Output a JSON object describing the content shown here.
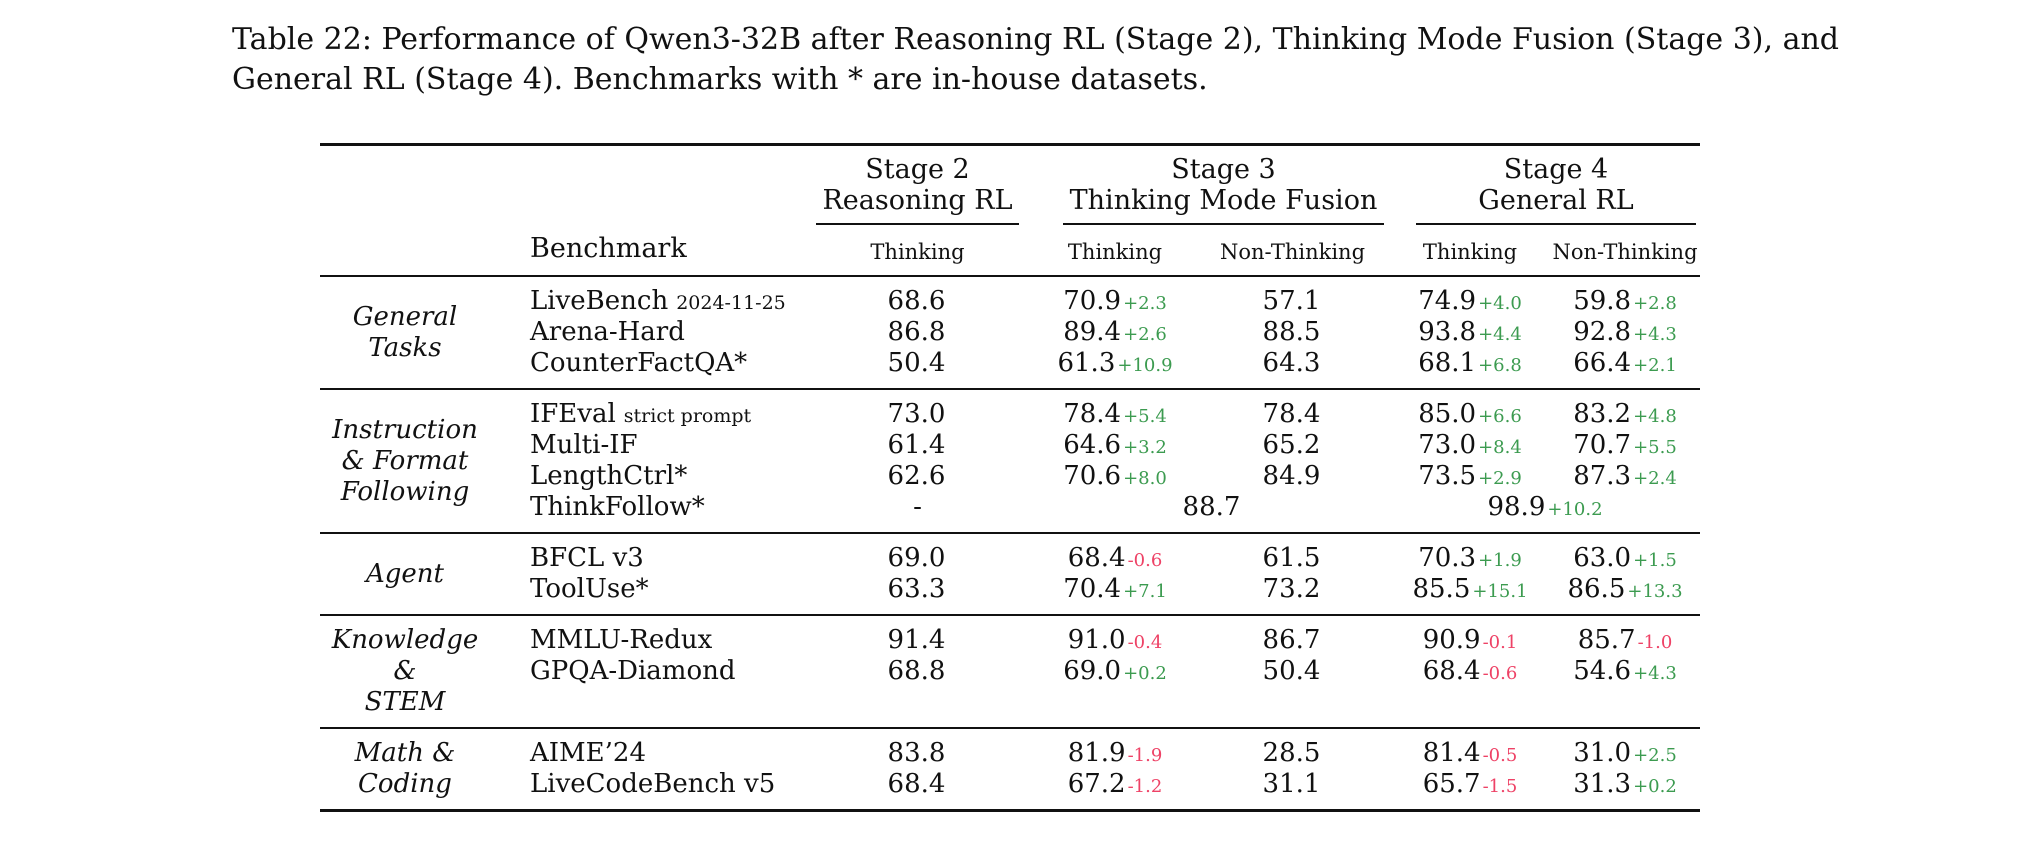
{
  "page": {
    "background": "#ffffff",
    "text_color": "#111111"
  },
  "colors": {
    "positive": "#3c9b50",
    "negative": "#ee4266",
    "rule": "#111111"
  },
  "caption": "Table 22: Performance of Qwen3-32B after Reasoning RL (Stage 2), Thinking Mode Fusion (Stage 3), and\nGeneral RL (Stage 4). Benchmarks with * are in-house datasets.",
  "table": {
    "benchmark_header": "Benchmark",
    "stages": [
      {
        "title": "Stage 2\nReasoning RL",
        "columns": [
          "Thinking"
        ]
      },
      {
        "title": "Stage 3\nThinking Mode Fusion",
        "columns": [
          "Thinking",
          "Non-Thinking"
        ]
      },
      {
        "title": "Stage 4\nGeneral RL",
        "columns": [
          "Thinking",
          "Non-Thinking"
        ]
      }
    ],
    "groups": [
      {
        "category": "General\nTasks",
        "rows": [
          {
            "benchmark": "LiveBench",
            "suffix": "2024-11-25",
            "cells": [
              {
                "v": "68.6"
              },
              {
                "v": "70.9",
                "d": "+2.3"
              },
              {
                "v": "57.1"
              },
              {
                "v": "74.9",
                "d": "+4.0"
              },
              {
                "v": "59.8",
                "d": "+2.8"
              }
            ]
          },
          {
            "benchmark": "Arena-Hard",
            "cells": [
              {
                "v": "86.8"
              },
              {
                "v": "89.4",
                "d": "+2.6"
              },
              {
                "v": "88.5"
              },
              {
                "v": "93.8",
                "d": "+4.4"
              },
              {
                "v": "92.8",
                "d": "+4.3"
              }
            ]
          },
          {
            "benchmark": "CounterFactQA*",
            "cells": [
              {
                "v": "50.4"
              },
              {
                "v": "61.3",
                "d": "+10.9"
              },
              {
                "v": "64.3"
              },
              {
                "v": "68.1",
                "d": "+6.8"
              },
              {
                "v": "66.4",
                "d": "+2.1"
              }
            ]
          }
        ]
      },
      {
        "category": "Instruction\n& Format\nFollowing",
        "rows": [
          {
            "benchmark": "IFEval",
            "suffix": "strict prompt",
            "cells": [
              {
                "v": "73.0"
              },
              {
                "v": "78.4",
                "d": "+5.4"
              },
              {
                "v": "78.4"
              },
              {
                "v": "85.0",
                "d": "+6.6"
              },
              {
                "v": "83.2",
                "d": "+4.8"
              }
            ]
          },
          {
            "benchmark": "Multi-IF",
            "cells": [
              {
                "v": "61.4"
              },
              {
                "v": "64.6",
                "d": "+3.2"
              },
              {
                "v": "65.2"
              },
              {
                "v": "73.0",
                "d": "+8.4"
              },
              {
                "v": "70.7",
                "d": "+5.5"
              }
            ]
          },
          {
            "benchmark": "LengthCtrl*",
            "cells": [
              {
                "v": "62.6"
              },
              {
                "v": "70.6",
                "d": "+8.0"
              },
              {
                "v": "84.9"
              },
              {
                "v": "73.5",
                "d": "+2.9"
              },
              {
                "v": "87.3",
                "d": "+2.4"
              }
            ]
          },
          {
            "benchmark": "ThinkFollow*",
            "cells": [
              {
                "v": "-"
              },
              {
                "v": "88.7"
              },
              {
                "v": "98.9",
                "d": "+10.2"
              }
            ]
          }
        ]
      },
      {
        "category": "Agent",
        "rows": [
          {
            "benchmark": "BFCL v3",
            "cells": [
              {
                "v": "69.0"
              },
              {
                "v": "68.4",
                "d": "-0.6"
              },
              {
                "v": "61.5"
              },
              {
                "v": "70.3",
                "d": "+1.9"
              },
              {
                "v": "63.0",
                "d": "+1.5"
              }
            ]
          },
          {
            "benchmark": "ToolUse*",
            "cells": [
              {
                "v": "63.3"
              },
              {
                "v": "70.4",
                "d": "+7.1"
              },
              {
                "v": "73.2"
              },
              {
                "v": "85.5",
                "d": "+15.1"
              },
              {
                "v": "86.5",
                "d": "+13.3"
              }
            ]
          }
        ]
      },
      {
        "category": "Knowledge &\nSTEM",
        "rows": [
          {
            "benchmark": "MMLU-Redux",
            "cells": [
              {
                "v": "91.4"
              },
              {
                "v": "91.0",
                "d": "-0.4"
              },
              {
                "v": "86.7"
              },
              {
                "v": "90.9",
                "d": "-0.1"
              },
              {
                "v": "85.7",
                "d": "-1.0"
              }
            ]
          },
          {
            "benchmark": "GPQA-Diamond",
            "cells": [
              {
                "v": "68.8"
              },
              {
                "v": "69.0",
                "d": "+0.2"
              },
              {
                "v": "50.4"
              },
              {
                "v": "68.4",
                "d": "-0.6"
              },
              {
                "v": "54.6",
                "d": "+4.3"
              }
            ]
          }
        ]
      },
      {
        "category": "Math &\nCoding",
        "rows": [
          {
            "benchmark": "AIME’24",
            "cells": [
              {
                "v": "83.8"
              },
              {
                "v": "81.9",
                "d": "-1.9"
              },
              {
                "v": "28.5"
              },
              {
                "v": "81.4",
                "d": "-0.5"
              },
              {
                "v": "31.0",
                "d": "+2.5"
              }
            ]
          },
          {
            "benchmark": "LiveCodeBench v5",
            "cells": [
              {
                "v": "68.4"
              },
              {
                "v": "67.2",
                "d": "-1.2"
              },
              {
                "v": "31.1"
              },
              {
                "v": "65.7",
                "d": "-1.5"
              },
              {
                "v": "31.3",
                "d": "+0.2"
              }
            ]
          }
        ]
      }
    ]
  }
}
